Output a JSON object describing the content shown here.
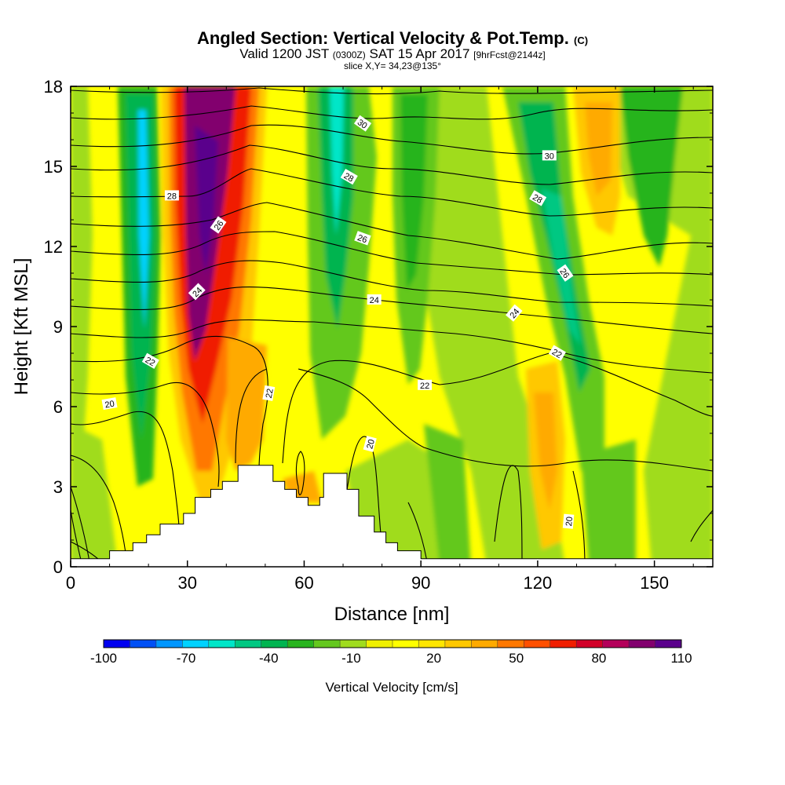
{
  "header": {
    "title": "Angled Section: Vertical Velocity & Pot.Temp.",
    "title_mark": "(C)",
    "subtitle_pre": "Valid 1200 JST",
    "subtitle_z": "(0300Z)",
    "subtitle_date": "SAT 15 Apr 2017",
    "subtitle_fcst": "[9hrFcst@2144z]",
    "slice": "slice X,Y= 34,23@135°"
  },
  "chart_data": {
    "type": "heatmap",
    "xlabel": "Distance [nm]",
    "ylabel": "Height [Kft MSL]",
    "xlim": [
      0,
      165
    ],
    "ylim": [
      0,
      18
    ],
    "x_ticks": [
      "0",
      "30",
      "60",
      "90",
      "120",
      "150"
    ],
    "x_tick_values": [
      0,
      30,
      60,
      90,
      120,
      150
    ],
    "y_ticks": [
      "0",
      "3",
      "6",
      "9",
      "12",
      "15",
      "18"
    ],
    "y_tick_values": [
      0,
      3,
      6,
      9,
      12,
      15,
      18
    ],
    "terrain": [
      [
        0,
        0.3
      ],
      [
        10,
        0.3
      ],
      [
        10,
        0.6
      ],
      [
        16,
        0.6
      ],
      [
        16,
        0.9
      ],
      [
        19.5,
        0.9
      ],
      [
        19.5,
        1.2
      ],
      [
        23,
        1.2
      ],
      [
        23,
        1.6
      ],
      [
        29,
        1.6
      ],
      [
        29,
        2.0
      ],
      [
        32,
        2.0
      ],
      [
        32,
        2.6
      ],
      [
        36,
        2.6
      ],
      [
        36,
        2.9
      ],
      [
        39,
        2.9
      ],
      [
        39,
        3.2
      ],
      [
        43,
        3.2
      ],
      [
        43,
        3.8
      ],
      [
        52,
        3.8
      ],
      [
        52,
        3.2
      ],
      [
        55,
        3.2
      ],
      [
        55,
        2.9
      ],
      [
        58,
        2.9
      ],
      [
        58,
        2.6
      ],
      [
        61,
        2.6
      ],
      [
        61,
        2.3
      ],
      [
        64,
        2.3
      ],
      [
        64,
        2.6
      ],
      [
        65,
        2.6
      ],
      [
        65,
        3.5
      ],
      [
        71,
        3.5
      ],
      [
        71,
        2.9
      ],
      [
        74,
        2.9
      ],
      [
        74,
        1.9
      ],
      [
        78,
        1.9
      ],
      [
        78,
        1.3
      ],
      [
        81,
        1.3
      ],
      [
        81,
        0.9
      ],
      [
        84,
        0.9
      ],
      [
        84,
        0.6
      ],
      [
        90,
        0.6
      ],
      [
        90,
        0.3
      ],
      [
        165,
        0.3
      ]
    ],
    "theta_labels": [
      {
        "text": "20",
        "x": 10,
        "y": 6.1,
        "rot": -10
      },
      {
        "text": "22",
        "x": 20.5,
        "y": 7.7,
        "rot": 30
      },
      {
        "text": "24",
        "x": 32.5,
        "y": 10.3,
        "rot": -45
      },
      {
        "text": "26",
        "x": 38,
        "y": 12.8,
        "rot": -55
      },
      {
        "text": "28",
        "x": 26,
        "y": 13.9,
        "rot": 0
      },
      {
        "text": "22",
        "x": 51,
        "y": 6.5,
        "rot": -80
      },
      {
        "text": "20",
        "x": 77,
        "y": 4.6,
        "rot": -75
      },
      {
        "text": "30",
        "x": 75,
        "y": 16.6,
        "rot": 35
      },
      {
        "text": "28",
        "x": 71.5,
        "y": 14.6,
        "rot": 30
      },
      {
        "text": "26",
        "x": 75,
        "y": 12.3,
        "rot": 20
      },
      {
        "text": "24",
        "x": 78,
        "y": 10.0,
        "rot": 0
      },
      {
        "text": "22",
        "x": 91,
        "y": 6.8,
        "rot": 0
      },
      {
        "text": "30",
        "x": 123,
        "y": 15.4,
        "rot": 0
      },
      {
        "text": "28",
        "x": 120,
        "y": 13.8,
        "rot": 30
      },
      {
        "text": "26",
        "x": 127,
        "y": 11.0,
        "rot": 55
      },
      {
        "text": "24",
        "x": 114,
        "y": 9.5,
        "rot": -50
      },
      {
        "text": "22",
        "x": 125,
        "y": 8.0,
        "rot": 30
      },
      {
        "text": "20",
        "x": 128,
        "y": 1.7,
        "rot": -85
      }
    ],
    "colorbar": {
      "title": "Vertical Velocity [cm/s]",
      "labels": [
        "-100",
        "-70",
        "-40",
        "-10",
        "20",
        "50",
        "80",
        "110"
      ],
      "label_values": [
        -100,
        -70,
        -40,
        -10,
        20,
        50,
        80,
        110
      ],
      "levels": [
        -100,
        -90,
        -80,
        -70,
        -60,
        -50,
        -40,
        -30,
        -20,
        -10,
        0,
        10,
        20,
        30,
        40,
        50,
        60,
        70,
        80,
        90,
        100,
        110
      ],
      "colors": [
        "#0000f0",
        "#0050f5",
        "#0096ff",
        "#00d2ff",
        "#00e6c8",
        "#00c882",
        "#00b450",
        "#28b41e",
        "#64c81e",
        "#a0dc1e",
        "#f0f000",
        "#ffff00",
        "#ffe600",
        "#ffc800",
        "#ffaa00",
        "#ff7800",
        "#ff5000",
        "#f01e00",
        "#d20028",
        "#b4005a",
        "#82006e",
        "#5a008c"
      ]
    }
  }
}
